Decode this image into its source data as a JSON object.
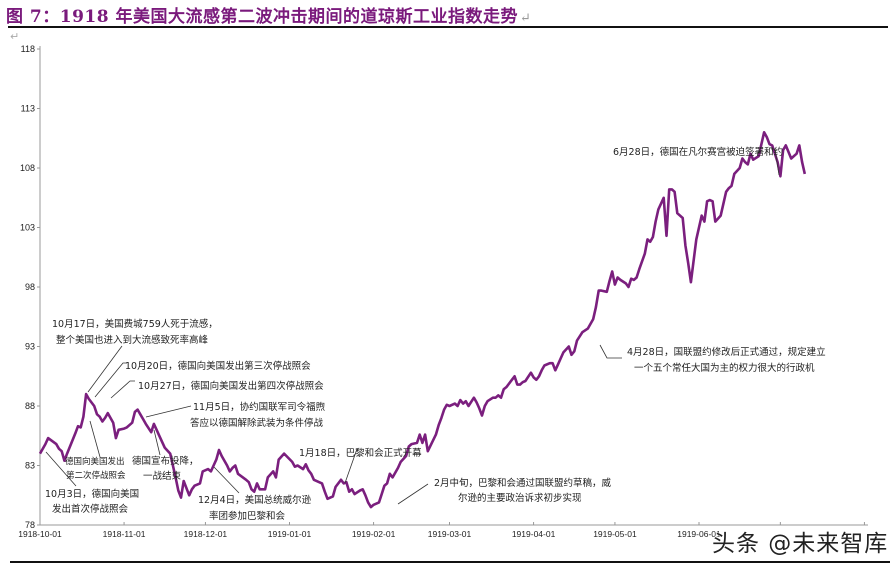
{
  "header": {
    "title": "图 7：1918 年美国大流感第二波冲击期间的道琼斯工业指数走势",
    "return_mark": "↵",
    "paragraph_mark": "↵"
  },
  "watermark": "头条 @未来智库",
  "colors": {
    "title": "#7a1a7c",
    "line": "#7b1f7e",
    "axis": "#999999",
    "annotation_leader": "#333333"
  },
  "chart_data": {
    "type": "line",
    "title": "1918 年美国大流感第二波冲击期间的道琼斯工业指数走势",
    "xlabel": "",
    "ylabel": "",
    "ylim": [
      78,
      118
    ],
    "yticks": [
      78,
      83,
      88,
      93,
      98,
      103,
      108,
      113,
      118
    ],
    "xticks": [
      "1918-10-01",
      "1918-11-01",
      "1918-12-01",
      "1919-01-01",
      "1919-02-01",
      "1919-03-01",
      "1919-04-01",
      "1919-05-01",
      "1919-06-01"
    ],
    "grid": false,
    "legend": "none",
    "series": [
      {
        "name": "道琼斯工业指数",
        "points": [
          [
            "1918-10-01",
            84.0
          ],
          [
            "1918-10-03",
            84.8
          ],
          [
            "1918-10-04",
            85.3
          ],
          [
            "1918-10-07",
            84.8
          ],
          [
            "1918-10-08",
            84.4
          ],
          [
            "1918-10-09",
            84.2
          ],
          [
            "1918-10-10",
            83.4
          ],
          [
            "1918-10-11",
            84.0
          ],
          [
            "1918-10-14",
            85.7
          ],
          [
            "1918-10-15",
            86.3
          ],
          [
            "1918-10-16",
            86.2
          ],
          [
            "1918-10-17",
            87.1
          ],
          [
            "1918-10-18",
            89.0
          ],
          [
            "1918-10-19",
            88.6
          ],
          [
            "1918-10-21",
            88.0
          ],
          [
            "1918-10-22",
            87.3
          ],
          [
            "1918-10-23",
            87.1
          ],
          [
            "1918-10-24",
            86.7
          ],
          [
            "1918-10-25",
            87.0
          ],
          [
            "1918-10-26",
            87.4
          ],
          [
            "1918-10-28",
            86.6
          ],
          [
            "1918-10-29",
            85.3
          ],
          [
            "1918-10-30",
            86.0
          ],
          [
            "1918-11-01",
            86.1
          ],
          [
            "1918-11-02",
            86.2
          ],
          [
            "1918-11-04",
            86.6
          ],
          [
            "1918-11-05",
            87.5
          ],
          [
            "1918-11-06",
            87.7
          ],
          [
            "1918-11-07",
            87.3
          ],
          [
            "1918-11-08",
            86.9
          ],
          [
            "1918-11-09",
            86.5
          ],
          [
            "1918-11-11",
            85.8
          ],
          [
            "1918-11-12",
            86.5
          ],
          [
            "1918-11-13",
            86.0
          ],
          [
            "1918-11-14",
            85.5
          ],
          [
            "1918-11-15",
            85.0
          ],
          [
            "1918-11-16",
            84.5
          ],
          [
            "1918-11-18",
            84.0
          ],
          [
            "1918-11-19",
            83.0
          ],
          [
            "1918-11-20",
            82.0
          ],
          [
            "1918-11-21",
            80.9
          ],
          [
            "1918-11-22",
            80.3
          ],
          [
            "1918-11-23",
            81.7
          ],
          [
            "1918-11-25",
            80.5
          ],
          [
            "1918-11-26",
            81.0
          ],
          [
            "1918-11-27",
            81.3
          ],
          [
            "1918-11-29",
            81.5
          ],
          [
            "1918-11-30",
            82.5
          ],
          [
            "1918-12-02",
            82.7
          ],
          [
            "1918-12-03",
            82.5
          ],
          [
            "1918-12-04",
            83.0
          ],
          [
            "1918-12-05",
            83.5
          ],
          [
            "1918-12-06",
            84.3
          ],
          [
            "1918-12-07",
            83.8
          ],
          [
            "1918-12-09",
            83.0
          ],
          [
            "1918-12-10",
            82.5
          ],
          [
            "1918-12-11",
            82.8
          ],
          [
            "1918-12-12",
            83.0
          ],
          [
            "1918-12-13",
            82.3
          ],
          [
            "1918-12-16",
            81.8
          ],
          [
            "1918-12-17",
            81.6
          ],
          [
            "1918-12-18",
            81.0
          ],
          [
            "1918-12-19",
            80.8
          ],
          [
            "1918-12-20",
            81.5
          ],
          [
            "1918-12-21",
            81.0
          ],
          [
            "1918-12-23",
            81.0
          ],
          [
            "1918-12-24",
            82.0
          ],
          [
            "1918-12-26",
            82.5
          ],
          [
            "1918-12-27",
            82.0
          ],
          [
            "1918-12-28",
            83.5
          ],
          [
            "1918-12-30",
            84.0
          ],
          [
            "1919-01-02",
            83.3
          ],
          [
            "1919-01-03",
            82.9
          ],
          [
            "1919-01-04",
            83.0
          ],
          [
            "1919-01-06",
            82.7
          ],
          [
            "1919-01-07",
            83.1
          ],
          [
            "1919-01-08",
            82.6
          ],
          [
            "1919-01-09",
            82.3
          ],
          [
            "1919-01-10",
            81.8
          ],
          [
            "1919-01-13",
            81.5
          ],
          [
            "1919-01-14",
            80.8
          ],
          [
            "1919-01-15",
            80.2
          ],
          [
            "1919-01-17",
            80.4
          ],
          [
            "1919-01-18",
            81.2
          ],
          [
            "1919-01-20",
            81.8
          ],
          [
            "1919-01-21",
            81.5
          ],
          [
            "1919-01-22",
            81.6
          ],
          [
            "1919-01-23",
            80.8
          ],
          [
            "1919-01-24",
            81.0
          ],
          [
            "1919-01-25",
            80.6
          ],
          [
            "1919-01-27",
            80.9
          ],
          [
            "1919-01-28",
            81.0
          ],
          [
            "1919-01-29",
            80.5
          ],
          [
            "1919-01-30",
            79.9
          ],
          [
            "1919-01-31",
            79.5
          ],
          [
            "1919-02-01",
            79.7
          ],
          [
            "1919-02-03",
            79.9
          ],
          [
            "1919-02-04",
            80.6
          ],
          [
            "1919-02-05",
            81.3
          ],
          [
            "1919-02-06",
            81.5
          ],
          [
            "1919-02-07",
            82.3
          ],
          [
            "1919-02-08",
            82.0
          ],
          [
            "1919-02-10",
            82.8
          ],
          [
            "1919-02-11",
            83.3
          ],
          [
            "1919-02-13",
            83.8
          ],
          [
            "1919-02-14",
            84.6
          ],
          [
            "1919-02-15",
            84.8
          ],
          [
            "1919-02-17",
            84.9
          ],
          [
            "1919-02-18",
            85.6
          ],
          [
            "1919-02-19",
            84.9
          ],
          [
            "1919-02-20",
            85.6
          ],
          [
            "1919-02-21",
            84.2
          ],
          [
            "1919-02-24",
            85.6
          ],
          [
            "1919-02-25",
            86.4
          ],
          [
            "1919-02-26",
            87.0
          ],
          [
            "1919-02-27",
            87.7
          ],
          [
            "1919-02-28",
            88.1
          ],
          [
            "1919-03-01",
            88.0
          ],
          [
            "1919-03-03",
            88.2
          ],
          [
            "1919-03-04",
            88.0
          ],
          [
            "1919-03-05",
            88.5
          ],
          [
            "1919-03-06",
            88.2
          ],
          [
            "1919-03-07",
            88.4
          ],
          [
            "1919-03-08",
            88.0
          ],
          [
            "1919-03-10",
            88.7
          ],
          [
            "1919-03-11",
            88.3
          ],
          [
            "1919-03-12",
            87.8
          ],
          [
            "1919-03-13",
            87.2
          ],
          [
            "1919-03-14",
            88.0
          ],
          [
            "1919-03-15",
            88.4
          ],
          [
            "1919-03-17",
            88.7
          ],
          [
            "1919-03-18",
            88.7
          ],
          [
            "1919-03-19",
            88.9
          ],
          [
            "1919-03-20",
            88.7
          ],
          [
            "1919-03-21",
            89.4
          ],
          [
            "1919-03-22",
            89.6
          ],
          [
            "1919-03-24",
            90.2
          ],
          [
            "1919-03-25",
            90.5
          ],
          [
            "1919-03-26",
            89.8
          ],
          [
            "1919-03-27",
            89.8
          ],
          [
            "1919-03-28",
            90.0
          ],
          [
            "1919-03-29",
            90.1
          ],
          [
            "1919-03-31",
            90.8
          ],
          [
            "1919-04-01",
            90.4
          ],
          [
            "1919-04-02",
            90.2
          ],
          [
            "1919-04-03",
            90.5
          ],
          [
            "1919-04-04",
            91.0
          ],
          [
            "1919-04-05",
            91.4
          ],
          [
            "1919-04-07",
            91.6
          ],
          [
            "1919-04-08",
            91.6
          ],
          [
            "1919-04-09",
            91.0
          ],
          [
            "1919-04-10",
            91.5
          ],
          [
            "1919-04-11",
            92.0
          ],
          [
            "1919-04-12",
            92.5
          ],
          [
            "1919-04-14",
            93.0
          ],
          [
            "1919-04-15",
            92.3
          ],
          [
            "1919-04-16",
            92.6
          ],
          [
            "1919-04-17",
            93.5
          ],
          [
            "1919-04-19",
            94.2
          ],
          [
            "1919-04-21",
            94.5
          ],
          [
            "1919-04-22",
            94.9
          ],
          [
            "1919-04-23",
            95.3
          ],
          [
            "1919-04-24",
            96.3
          ],
          [
            "1919-04-25",
            97.7
          ],
          [
            "1919-04-26",
            97.7
          ],
          [
            "1919-04-28",
            97.6
          ],
          [
            "1919-04-29",
            98.5
          ],
          [
            "1919-04-30",
            99.3
          ],
          [
            "1919-05-01",
            98.2
          ],
          [
            "1919-05-02",
            98.8
          ],
          [
            "1919-05-03",
            98.6
          ],
          [
            "1919-05-05",
            98.3
          ],
          [
            "1919-05-06",
            98.0
          ],
          [
            "1919-05-07",
            98.7
          ],
          [
            "1919-05-08",
            98.6
          ],
          [
            "1919-05-09",
            98.8
          ],
          [
            "1919-05-10",
            99.5
          ],
          [
            "1919-05-12",
            100.8
          ],
          [
            "1919-05-13",
            102.0
          ],
          [
            "1919-05-14",
            101.8
          ],
          [
            "1919-05-15",
            102.2
          ],
          [
            "1919-05-16",
            103.5
          ],
          [
            "1919-05-17",
            104.5
          ],
          [
            "1919-05-19",
            105.5
          ],
          [
            "1919-05-20",
            102.3
          ],
          [
            "1919-05-21",
            106.2
          ],
          [
            "1919-05-22",
            106.2
          ],
          [
            "1919-05-23",
            106.0
          ],
          [
            "1919-05-24",
            104.2
          ],
          [
            "1919-05-26",
            103.8
          ],
          [
            "1919-05-27",
            101.5
          ],
          [
            "1919-05-28",
            100.0
          ],
          [
            "1919-05-29",
            98.4
          ],
          [
            "1919-05-31",
            102.0
          ],
          [
            "1919-06-02",
            104.0
          ],
          [
            "1919-06-03",
            103.5
          ],
          [
            "1919-06-04",
            105.2
          ],
          [
            "1919-06-05",
            105.3
          ],
          [
            "1919-06-06",
            105.2
          ],
          [
            "1919-06-07",
            103.5
          ],
          [
            "1919-06-09",
            104.0
          ],
          [
            "1919-06-10",
            105.0
          ],
          [
            "1919-06-11",
            106.0
          ],
          [
            "1919-06-12",
            106.3
          ],
          [
            "1919-06-13",
            106.5
          ],
          [
            "1919-06-14",
            107.5
          ],
          [
            "1919-06-16",
            108.0
          ],
          [
            "1919-06-17",
            108.8
          ],
          [
            "1919-06-18",
            108.5
          ],
          [
            "1919-06-19",
            108.3
          ],
          [
            "1919-06-20",
            109.2
          ],
          [
            "1919-06-21",
            108.7
          ],
          [
            "1919-06-23",
            109.0
          ],
          [
            "1919-06-24",
            110.0
          ],
          [
            "1919-06-25",
            111.0
          ],
          [
            "1919-06-26",
            110.6
          ],
          [
            "1919-06-27",
            110.0
          ],
          [
            "1919-06-28",
            109.9
          ],
          [
            "1919-06-30",
            108.5
          ],
          [
            "1919-07-01",
            107.3
          ],
          [
            "1919-07-02",
            109.5
          ],
          [
            "1919-07-03",
            109.9
          ],
          [
            "1919-07-05",
            108.8
          ],
          [
            "1919-07-07",
            109.2
          ],
          [
            "1919-07-08",
            109.9
          ],
          [
            "1919-07-09",
            108.5
          ],
          [
            "1919-07-10",
            107.5
          ]
        ]
      }
    ],
    "annotations": [
      {
        "lines": [
          "10月3日，德国向美国",
          "发出首次停战照会"
        ]
      },
      {
        "lines": [
          "德国向美国发出",
          "第二次停战照会"
        ]
      },
      {
        "lines": [
          "10月17日，美国费城759人死于流感，",
          "整个美国也进入到大流感致死率高峰"
        ]
      },
      {
        "lines": [
          "10月20日，德国向美国发出第三次停战照会"
        ]
      },
      {
        "lines": [
          "10月27日，德国向美国发出第四次停战照会"
        ]
      },
      {
        "lines": [
          "11月5日，协约国联军司令福煦",
          "答应以德国解除武装为条件停战"
        ]
      },
      {
        "lines": [
          "德国宣布投降，",
          "一战结束"
        ]
      },
      {
        "lines": [
          "12月4日，美国总统威尔逊",
          "率团参加巴黎和会"
        ]
      },
      {
        "lines": [
          "1月18日，巴黎和会正式开幕"
        ]
      },
      {
        "lines": [
          "2月中旬，巴黎和会通过国联盟约草稿，威",
          "尔逊的主要政治诉求初步实现"
        ]
      },
      {
        "lines": [
          "4月28日，国联盟约修改后正式通过，规定建立",
          "一个五个常任大国为主的权力很大的行政机"
        ]
      },
      {
        "lines": [
          "6月28日，德国在凡尔赛宫被迫签署和约"
        ]
      }
    ]
  }
}
